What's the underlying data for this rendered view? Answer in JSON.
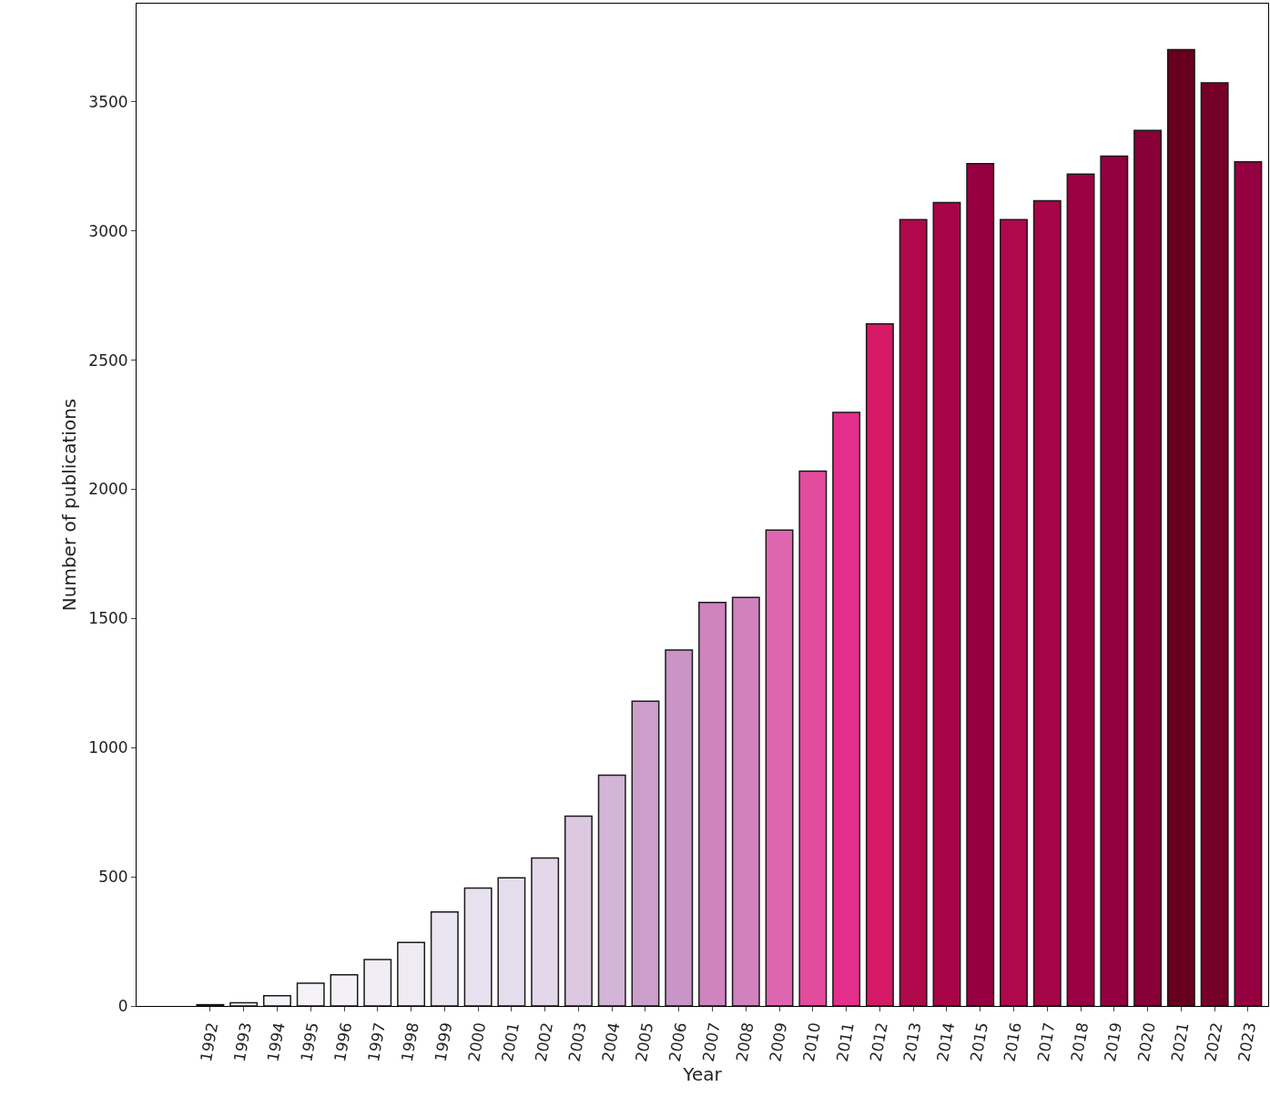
{
  "chart_data": {
    "type": "bar",
    "xlabel": "Year",
    "ylabel": "Number of publications",
    "categories": [
      "1992",
      "1993",
      "1994",
      "1995",
      "1996",
      "1997",
      "1998",
      "1999",
      "2000",
      "2001",
      "2002",
      "2003",
      "2004",
      "2005",
      "2006",
      "2007",
      "2008",
      "2009",
      "2010",
      "2011",
      "2012",
      "2013",
      "2014",
      "2015",
      "2016",
      "2017",
      "2018",
      "2019",
      "2020",
      "2021",
      "2022",
      "2023"
    ],
    "values": [
      5,
      12,
      40,
      88,
      121,
      180,
      246,
      364,
      456,
      496,
      573,
      735,
      893,
      1180,
      1378,
      1562,
      1581,
      1842,
      2070,
      2298,
      2640,
      3044,
      3110,
      3261,
      3044,
      3117,
      3220,
      3290,
      3389,
      3702,
      3573,
      3268
    ],
    "colors": [
      "#f7f4f9",
      "#f7f4f9",
      "#f5f2f8",
      "#f4f1f7",
      "#f3f0f7",
      "#f1edf5",
      "#efebf4",
      "#eae6f1",
      "#e7e1ef",
      "#e6ddec",
      "#e3d7e9",
      "#dcc9e1",
      "#d3b5d8",
      "#cc9fcb",
      "#c994c7",
      "#cf83bf",
      "#d081be",
      "#de66b1",
      "#e34b9c",
      "#e62e8c",
      "#d61966",
      "#af084b",
      "#a70548",
      "#960041",
      "#af084b",
      "#a60547",
      "#9a0143",
      "#92003f",
      "#880037",
      "#67001f",
      "#750029",
      "#950041"
    ],
    "ylim": [
      0,
      3880
    ],
    "yticks": [
      0,
      500,
      1000,
      1500,
      2000,
      2500,
      3000,
      3500
    ]
  }
}
